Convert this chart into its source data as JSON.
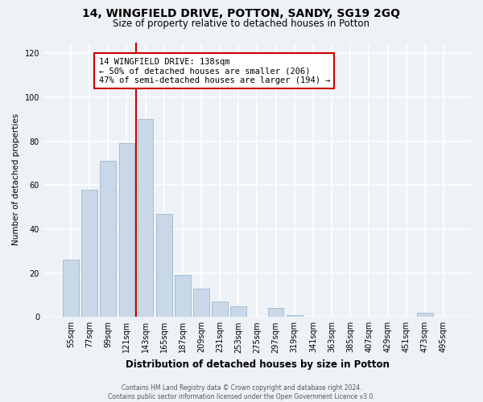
{
  "title": "14, WINGFIELD DRIVE, POTTON, SANDY, SG19 2GQ",
  "subtitle": "Size of property relative to detached houses in Potton",
  "xlabel": "Distribution of detached houses by size in Potton",
  "ylabel": "Number of detached properties",
  "bar_labels": [
    "55sqm",
    "77sqm",
    "99sqm",
    "121sqm",
    "143sqm",
    "165sqm",
    "187sqm",
    "209sqm",
    "231sqm",
    "253sqm",
    "275sqm",
    "297sqm",
    "319sqm",
    "341sqm",
    "363sqm",
    "385sqm",
    "407sqm",
    "429sqm",
    "451sqm",
    "473sqm",
    "495sqm"
  ],
  "bar_values": [
    26,
    58,
    71,
    79,
    90,
    47,
    19,
    13,
    7,
    5,
    0,
    4,
    1,
    0,
    0,
    0,
    0,
    0,
    0,
    2,
    0
  ],
  "bar_color": "#c8d8e8",
  "bar_edge_color": "#a8bece",
  "vline_x": 3.5,
  "vline_color": "#cc0000",
  "annotation_text": "14 WINGFIELD DRIVE: 138sqm\n← 50% of detached houses are smaller (206)\n47% of semi-detached houses are larger (194) →",
  "annotation_box_color": "#ffffff",
  "annotation_box_edge": "#cc0000",
  "ylim": [
    0,
    125
  ],
  "yticks": [
    0,
    20,
    40,
    60,
    80,
    100,
    120
  ],
  "footer_text": "Contains HM Land Registry data © Crown copyright and database right 2024.\nContains public sector information licensed under the Open Government Licence v3.0.",
  "background_color": "#eef2f7"
}
